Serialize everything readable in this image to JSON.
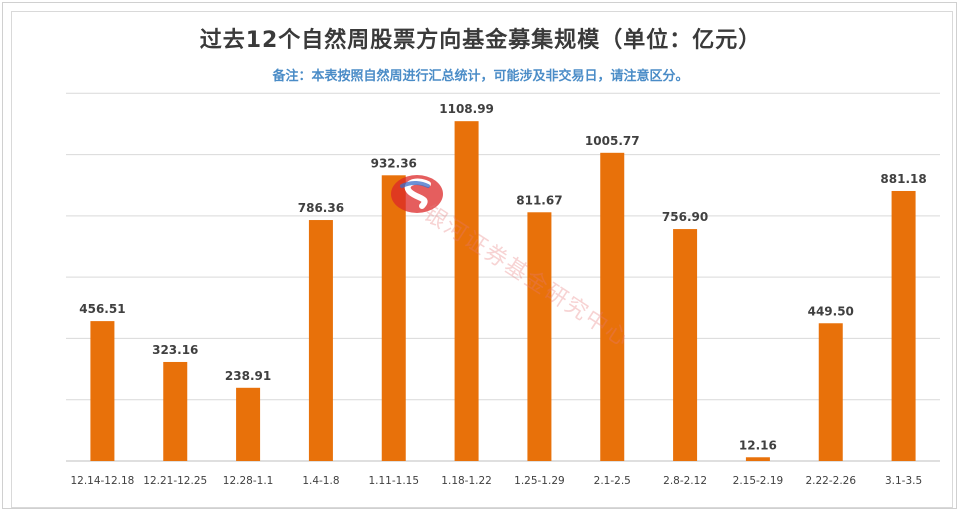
{
  "chart": {
    "title": "过去12个自然周股票方向基金募集规模（单位：亿元）",
    "subtitle": "备注：本表按照自然周进行汇总统计，可能涉及非交易日，请注意区分。",
    "watermark": "银河证券基金研究中心"
  },
  "colors": {
    "bar": "#E8710A",
    "grid": "#D9D9D9",
    "axis": "#BFBFBF",
    "subtitle": "#4A8CC7"
  },
  "chart_data": {
    "type": "bar",
    "title": "过去12个自然周股票方向基金募集规模（单位：亿元）",
    "subtitle": "备注：本表按照自然周进行汇总统计，可能涉及非交易日，请注意区分。",
    "categories": [
      "12.14-12.18",
      "12.21-12.25",
      "12.28-1.1",
      "1.4-1.8",
      "1.11-1.15",
      "1.18-1.22",
      "1.25-1.29",
      "2.1-2.5",
      "2.8-2.12",
      "2.15-2.19",
      "2.22-2.26",
      "3.1-3.5"
    ],
    "values": [
      456.51,
      323.16,
      238.91,
      786.36,
      932.36,
      1108.99,
      811.67,
      1005.77,
      756.9,
      12.16,
      449.5,
      881.18
    ],
    "value_labels": [
      "456.51",
      "323.16",
      "238.91",
      "786.36",
      "932.36",
      "1108.99",
      "811.67",
      "1005.77",
      "756.90",
      "12.16",
      "449.50",
      "881.18"
    ],
    "ylim": [
      0,
      1400
    ],
    "grid": true,
    "legend": "none"
  }
}
